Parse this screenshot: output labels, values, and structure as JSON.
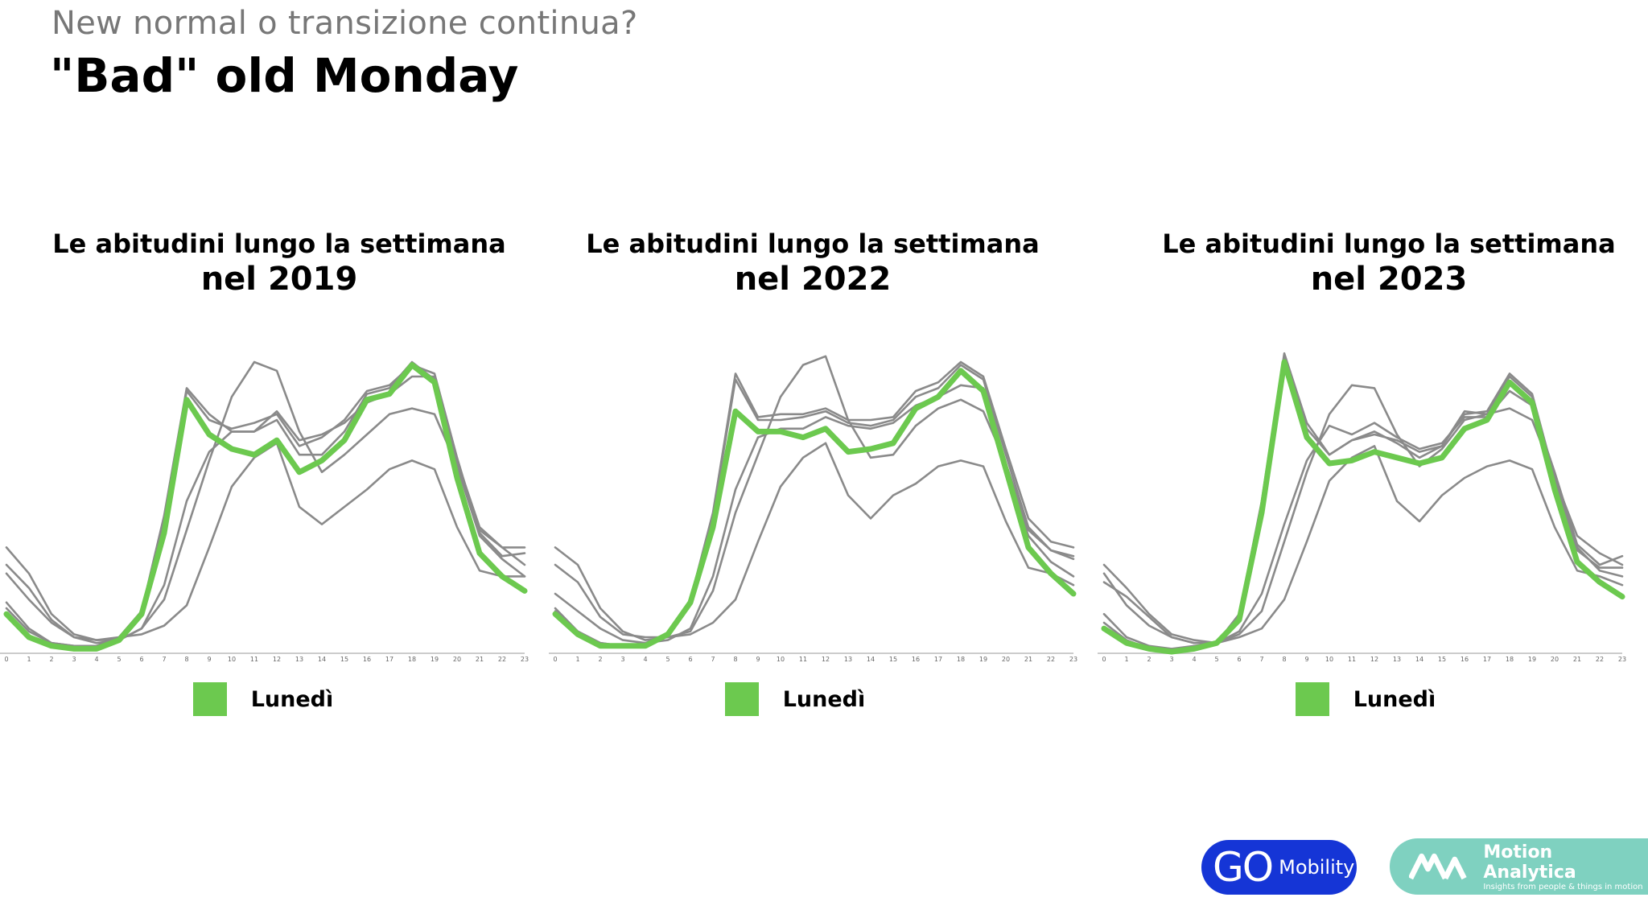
{
  "header": {
    "subtitle": "New normal o transizione continua?",
    "title": "\"Bad\" old Monday"
  },
  "colors": {
    "highlight": "#6cc94f",
    "other_days": "#8a8a8a",
    "axis": "#cccccc"
  },
  "chart_data": [
    {
      "type": "line",
      "title_line1": "Le abitudini lungo la settimana",
      "title_line2": "nel 2019",
      "x": [
        0,
        1,
        2,
        3,
        4,
        5,
        6,
        7,
        8,
        9,
        10,
        11,
        12,
        13,
        14,
        15,
        16,
        17,
        18,
        19,
        20,
        21,
        22,
        23
      ],
      "ylim": [
        0,
        1
      ],
      "highlight_series": "Lunedì",
      "legend": {
        "label": "Lunedì",
        "position": "bottom"
      },
      "series": [
        {
          "name": "Lunedì",
          "values": [
            0.13,
            0.05,
            0.02,
            0.01,
            0.01,
            0.04,
            0.13,
            0.41,
            0.87,
            0.75,
            0.7,
            0.68,
            0.73,
            0.62,
            0.66,
            0.73,
            0.87,
            0.89,
            0.99,
            0.93,
            0.6,
            0.34,
            0.26,
            0.21
          ]
        },
        {
          "values": [
            0.17,
            0.08,
            0.03,
            0.02,
            0.02,
            0.05,
            0.14,
            0.47,
            0.91,
            0.82,
            0.76,
            0.76,
            0.8,
            0.68,
            0.68,
            0.76,
            0.89,
            0.91,
            1.0,
            0.94,
            0.66,
            0.43,
            0.36,
            0.36
          ]
        },
        {
          "values": [
            0.15,
            0.07,
            0.03,
            0.02,
            0.02,
            0.05,
            0.14,
            0.44,
            0.9,
            0.8,
            0.77,
            0.79,
            0.82,
            0.71,
            0.74,
            0.8,
            0.9,
            0.92,
            0.99,
            0.96,
            0.67,
            0.41,
            0.33,
            0.34
          ]
        },
        {
          "values": [
            0.3,
            0.22,
            0.11,
            0.05,
            0.04,
            0.05,
            0.06,
            0.09,
            0.16,
            0.36,
            0.57,
            0.67,
            0.72,
            0.5,
            0.44,
            0.5,
            0.56,
            0.63,
            0.66,
            0.63,
            0.43,
            0.28,
            0.26,
            0.26
          ]
        },
        {
          "values": [
            0.36,
            0.27,
            0.13,
            0.06,
            0.04,
            0.04,
            0.08,
            0.18,
            0.42,
            0.66,
            0.88,
            1.0,
            0.97,
            0.76,
            0.62,
            0.68,
            0.75,
            0.82,
            0.84,
            0.82,
            0.64,
            0.42,
            0.36,
            0.3
          ]
        },
        {
          "values": [
            0.27,
            0.18,
            0.1,
            0.05,
            0.03,
            0.04,
            0.08,
            0.23,
            0.52,
            0.69,
            0.76,
            0.76,
            0.83,
            0.73,
            0.75,
            0.79,
            0.86,
            0.89,
            0.95,
            0.95,
            0.64,
            0.4,
            0.32,
            0.26
          ]
        }
      ],
      "x_tick_labels": [
        "0",
        "1",
        "2",
        "3",
        "4",
        "5",
        "6",
        "7",
        "8",
        "9",
        "10",
        "11",
        "12",
        "13",
        "14",
        "15",
        "16",
        "17",
        "18",
        "19",
        "20",
        "21",
        "22",
        "23"
      ]
    },
    {
      "type": "line",
      "title_line1": "Le abitudini lungo la settimana",
      "title_line2": "nel 2022",
      "x": [
        0,
        1,
        2,
        3,
        4,
        5,
        6,
        7,
        8,
        9,
        10,
        11,
        12,
        13,
        14,
        15,
        16,
        17,
        18,
        19,
        20,
        21,
        22,
        23
      ],
      "ylim": [
        0,
        1
      ],
      "highlight_series": "Lunedì",
      "legend": {
        "label": "Lunedì",
        "position": "bottom"
      },
      "series": [
        {
          "name": "Lunedì",
          "values": [
            0.13,
            0.06,
            0.02,
            0.02,
            0.02,
            0.06,
            0.17,
            0.43,
            0.83,
            0.76,
            0.76,
            0.74,
            0.77,
            0.69,
            0.7,
            0.72,
            0.84,
            0.88,
            0.97,
            0.9,
            0.63,
            0.36,
            0.27,
            0.2
          ]
        },
        {
          "values": [
            0.14,
            0.07,
            0.03,
            0.02,
            0.02,
            0.06,
            0.18,
            0.48,
            0.96,
            0.81,
            0.82,
            0.82,
            0.84,
            0.8,
            0.8,
            0.81,
            0.9,
            0.93,
            1.0,
            0.95,
            0.7,
            0.46,
            0.38,
            0.36
          ]
        },
        {
          "values": [
            0.15,
            0.07,
            0.03,
            0.02,
            0.03,
            0.06,
            0.18,
            0.47,
            0.94,
            0.8,
            0.8,
            0.81,
            0.83,
            0.79,
            0.78,
            0.8,
            0.88,
            0.91,
            0.99,
            0.94,
            0.68,
            0.43,
            0.35,
            0.33
          ]
        },
        {
          "values": [
            0.3,
            0.24,
            0.12,
            0.06,
            0.05,
            0.05,
            0.06,
            0.1,
            0.18,
            0.38,
            0.57,
            0.67,
            0.72,
            0.54,
            0.46,
            0.54,
            0.58,
            0.64,
            0.66,
            0.64,
            0.45,
            0.29,
            0.27,
            0.23
          ]
        },
        {
          "values": [
            0.36,
            0.3,
            0.15,
            0.07,
            0.04,
            0.05,
            0.07,
            0.21,
            0.48,
            0.68,
            0.88,
            0.99,
            1.02,
            0.8,
            0.67,
            0.68,
            0.78,
            0.84,
            0.87,
            0.83,
            0.65,
            0.42,
            0.35,
            0.32
          ]
        },
        {
          "values": [
            0.2,
            0.14,
            0.08,
            0.04,
            0.03,
            0.04,
            0.08,
            0.26,
            0.56,
            0.74,
            0.77,
            0.77,
            0.81,
            0.78,
            0.77,
            0.79,
            0.85,
            0.88,
            0.92,
            0.91,
            0.63,
            0.4,
            0.31,
            0.26
          ]
        }
      ],
      "x_tick_labels": [
        "0",
        "1",
        "2",
        "3",
        "4",
        "5",
        "6",
        "7",
        "8",
        "9",
        "10",
        "11",
        "12",
        "13",
        "14",
        "15",
        "16",
        "17",
        "18",
        "19",
        "20",
        "21",
        "22",
        "23"
      ]
    },
    {
      "type": "line",
      "title_line1": "Le abitudini lungo la settimana",
      "title_line2": "nel 2023",
      "x": [
        0,
        1,
        2,
        3,
        4,
        5,
        6,
        7,
        8,
        9,
        10,
        11,
        12,
        13,
        14,
        15,
        16,
        17,
        18,
        19,
        20,
        21,
        22,
        23
      ],
      "ylim": [
        0,
        1
      ],
      "highlight_series": "Lunedì",
      "legend": {
        "label": "Lunedì",
        "position": "bottom"
      },
      "series": [
        {
          "name": "Lunedì",
          "values": [
            0.08,
            0.03,
            0.01,
            0.0,
            0.01,
            0.03,
            0.11,
            0.48,
            1.0,
            0.74,
            0.65,
            0.66,
            0.69,
            0.67,
            0.65,
            0.67,
            0.77,
            0.8,
            0.93,
            0.86,
            0.56,
            0.31,
            0.24,
            0.19
          ]
        },
        {
          "values": [
            0.1,
            0.04,
            0.01,
            0.01,
            0.01,
            0.03,
            0.12,
            0.5,
            1.02,
            0.77,
            0.68,
            0.73,
            0.75,
            0.73,
            0.69,
            0.71,
            0.83,
            0.82,
            0.95,
            0.88,
            0.6,
            0.36,
            0.28,
            0.26
          ]
        },
        {
          "values": [
            0.13,
            0.05,
            0.02,
            0.01,
            0.02,
            0.03,
            0.13,
            0.52,
            1.03,
            0.79,
            0.68,
            0.73,
            0.76,
            0.72,
            0.67,
            0.71,
            0.82,
            0.83,
            0.96,
            0.89,
            0.6,
            0.35,
            0.29,
            0.29
          ]
        },
        {
          "values": [
            0.24,
            0.19,
            0.12,
            0.05,
            0.03,
            0.03,
            0.05,
            0.08,
            0.18,
            0.38,
            0.59,
            0.67,
            0.71,
            0.52,
            0.45,
            0.54,
            0.6,
            0.64,
            0.66,
            0.63,
            0.43,
            0.28,
            0.26,
            0.23
          ]
        },
        {
          "values": [
            0.3,
            0.22,
            0.13,
            0.06,
            0.04,
            0.03,
            0.06,
            0.14,
            0.38,
            0.62,
            0.82,
            0.92,
            0.91,
            0.75,
            0.64,
            0.7,
            0.8,
            0.82,
            0.84,
            0.8,
            0.6,
            0.4,
            0.34,
            0.3
          ]
        },
        {
          "values": [
            0.27,
            0.16,
            0.09,
            0.05,
            0.03,
            0.03,
            0.07,
            0.2,
            0.44,
            0.66,
            0.78,
            0.75,
            0.79,
            0.74,
            0.7,
            0.72,
            0.81,
            0.81,
            0.9,
            0.85,
            0.62,
            0.37,
            0.3,
            0.33
          ]
        }
      ],
      "x_tick_labels": [
        "0",
        "1",
        "2",
        "3",
        "4",
        "5",
        "6",
        "7",
        "8",
        "9",
        "10",
        "11",
        "12",
        "13",
        "14",
        "15",
        "16",
        "17",
        "18",
        "19",
        "20",
        "21",
        "22",
        "23"
      ]
    }
  ],
  "logos": {
    "go_mark": "GO",
    "go_text": "Mobility",
    "ma_title": "Motion Analytica",
    "ma_tagline": "Insights from people & things in motion"
  }
}
